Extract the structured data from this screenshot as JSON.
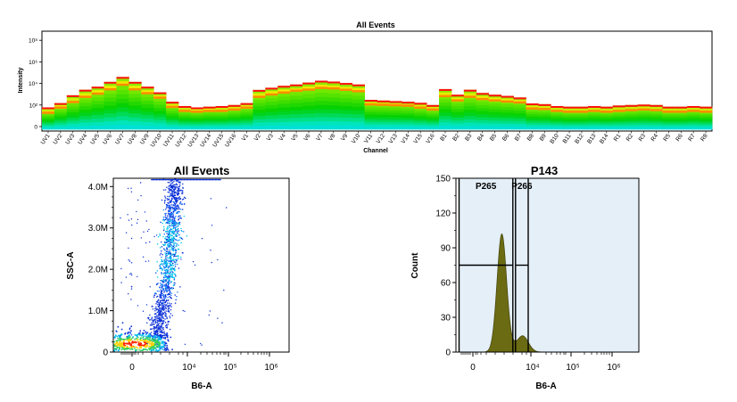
{
  "chart_data": [
    {
      "type": "heatmap",
      "title": "All Events",
      "xlabel": "Channel",
      "ylabel": "Intensity",
      "y_scale": "log",
      "y_ticks": [
        "0",
        "10²",
        "10⁴",
        "10⁶",
        "10⁸"
      ],
      "y_tick_values": [
        0,
        100,
        10000,
        1000000,
        100000000
      ],
      "channels": [
        "UV1",
        "UV2",
        "UV3",
        "UV4",
        "UV5",
        "UV6",
        "UV7",
        "UV8",
        "UV9",
        "UV10",
        "UV11",
        "UV12",
        "UV13",
        "UV14",
        "UV15",
        "UV16",
        "V1",
        "V2",
        "V3",
        "V4",
        "V5",
        "V6",
        "V7",
        "V8",
        "V9",
        "V10",
        "V11",
        "V12",
        "V13",
        "V14",
        "V15",
        "V16",
        "B1",
        "B2",
        "B3",
        "B4",
        "B5",
        "B6",
        "B7",
        "B8",
        "B9",
        "B10",
        "B11",
        "B12",
        "B13",
        "B14",
        "R1",
        "R2",
        "R3",
        "R4",
        "R5",
        "R6",
        "R7",
        "R8"
      ],
      "median_intensity": [
        20,
        60,
        200,
        600,
        1200,
        3000,
        8000,
        3000,
        1300,
        500,
        70,
        30,
        25,
        30,
        30,
        40,
        60,
        600,
        1000,
        1500,
        2200,
        2800,
        4000,
        3600,
        2700,
        2000,
        120,
        110,
        100,
        90,
        60,
        40,
        700,
        280,
        600,
        380,
        280,
        220,
        180,
        50,
        45,
        30,
        25,
        25,
        30,
        25,
        30,
        35,
        40,
        35,
        25,
        25,
        30,
        25
      ],
      "max_intensity": [
        60,
        150,
        800,
        2600,
        5000,
        14000,
        40000,
        14000,
        5000,
        1500,
        200,
        80,
        60,
        70,
        80,
        100,
        150,
        2500,
        4000,
        6000,
        8000,
        12000,
        18000,
        15000,
        11000,
        8000,
        300,
        260,
        230,
        200,
        160,
        100,
        3000,
        900,
        2600,
        1300,
        900,
        700,
        500,
        140,
        120,
        80,
        70,
        70,
        80,
        70,
        90,
        100,
        110,
        100,
        70,
        70,
        80,
        70
      ],
      "color_scale": [
        "#0000ff",
        "#00a8ff",
        "#00e8d0",
        "#00d000",
        "#70e800",
        "#f0f000",
        "#ff8c00",
        "#ff1010"
      ]
    },
    {
      "type": "scatter",
      "title": "All Events",
      "xlabel": "B6-A",
      "ylabel": "SSC-A",
      "x_scale": "biexponential",
      "x_ticks": [
        "0",
        "10⁴",
        "10⁵",
        "10⁶"
      ],
      "y_ticks": [
        "0",
        "1.0M",
        "2.0M",
        "3.0M",
        "4.0M"
      ],
      "ylim": [
        0,
        4200000
      ],
      "populations": [
        {
          "name": "",
          "x_center": 100,
          "y_center": 200000,
          "relative_size": "large dense core"
        },
        {
          "name": "",
          "x_center": 2500,
          "y_center": 2300000,
          "relative_size": "diagonal streak from 0.3M to 4.2M"
        }
      ]
    },
    {
      "type": "area",
      "title": "P143",
      "xlabel": "B6-A",
      "ylabel": "Count",
      "x_scale": "biexponential",
      "x_ticks": [
        "0",
        "10⁴",
        "10⁵",
        "10⁶"
      ],
      "y_ticks": [
        "0",
        "30",
        "60",
        "90",
        "120",
        "150"
      ],
      "ylim": [
        0,
        150
      ],
      "peaks": [
        {
          "x_center": 1200,
          "count": 102
        },
        {
          "x_center": 5500,
          "count": 14
        }
      ],
      "fill_color": "#6b6b14",
      "gates": [
        {
          "name": "P265",
          "x_range": [
            -300,
            2700
          ],
          "marker_height": 75
        },
        {
          "name": "P266",
          "x_range": [
            2700,
            10000
          ],
          "marker_height": 75
        }
      ],
      "shaded_region_color": "#e4eff8"
    }
  ]
}
